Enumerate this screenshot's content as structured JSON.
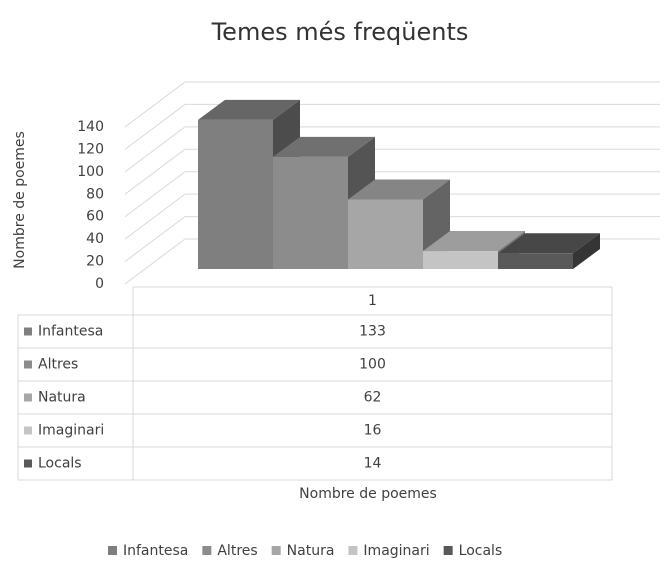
{
  "chart_data": {
    "type": "bar3d",
    "title": "Temes més freqüents",
    "y_label": "Nombre de poemes",
    "x_label": "Nombre de poemes",
    "categories": [
      "1"
    ],
    "series": [
      {
        "name": "Infantesa",
        "color": "#7f7f7f",
        "values": [
          133
        ]
      },
      {
        "name": "Altres",
        "color": "#8c8c8c",
        "values": [
          100
        ]
      },
      {
        "name": "Natura",
        "color": "#a6a6a6",
        "values": [
          62
        ]
      },
      {
        "name": "Imaginari",
        "color": "#c4c4c4",
        "values": [
          16
        ]
      },
      {
        "name": "Locals",
        "color": "#595959",
        "values": [
          14
        ]
      }
    ],
    "ylim": [
      0,
      140
    ],
    "yticks": [
      0,
      20,
      40,
      60,
      80,
      100,
      120,
      140
    ],
    "grid": true,
    "legend": "bottom",
    "data_table": true
  }
}
